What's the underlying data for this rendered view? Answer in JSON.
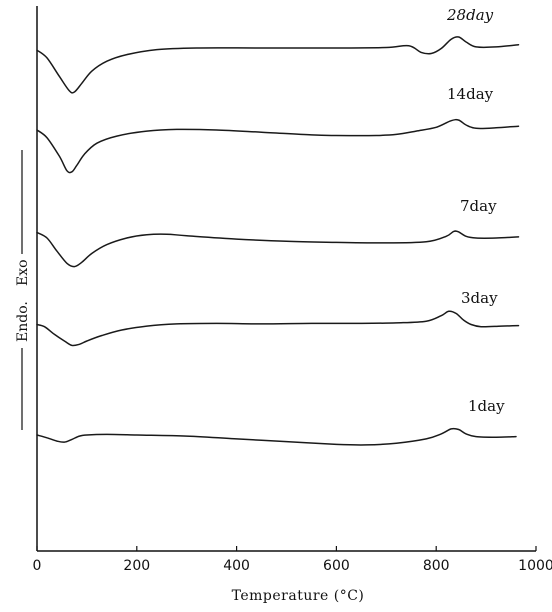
{
  "chart_data": {
    "type": "line",
    "xlabel": "Temperature (°C)",
    "xlim": [
      0,
      1000
    ],
    "xticks": [
      0,
      200,
      400,
      600,
      800,
      1000
    ],
    "ylabel": {
      "endo": "Endo.",
      "exo": "Exo"
    },
    "grid": false,
    "series": [
      {
        "name": "28day",
        "x": [
          0,
          20,
          45,
          65,
          75,
          90,
          110,
          140,
          180,
          240,
          320,
          450,
          600,
          700,
          745,
          770,
          790,
          810,
          830,
          845,
          860,
          880,
          920,
          965
        ],
        "y": [
          -0.2,
          -0.9,
          -2.6,
          -3.9,
          -4.0,
          -3.2,
          -2.1,
          -1.2,
          -0.6,
          -0.15,
          0.0,
          0.0,
          0.0,
          0.05,
          0.2,
          -0.4,
          -0.5,
          -0.05,
          0.8,
          1.0,
          0.55,
          0.1,
          0.1,
          0.3
        ]
      },
      {
        "name": "14day",
        "x": [
          0,
          20,
          45,
          60,
          70,
          80,
          95,
          120,
          160,
          220,
          280,
          360,
          450,
          550,
          600,
          680,
          720,
          760,
          800,
          830,
          845,
          860,
          880,
          920,
          965
        ],
        "y": [
          0.0,
          -0.7,
          -2.4,
          -3.7,
          -3.8,
          -3.2,
          -2.2,
          -1.2,
          -0.55,
          -0.1,
          0.05,
          0.0,
          -0.2,
          -0.45,
          -0.5,
          -0.5,
          -0.4,
          -0.1,
          0.25,
          0.85,
          0.9,
          0.45,
          0.15,
          0.2,
          0.35
        ]
      },
      {
        "name": "7day",
        "x": [
          0,
          20,
          40,
          60,
          75,
          90,
          110,
          140,
          180,
          220,
          260,
          300,
          400,
          500,
          600,
          700,
          780,
          820,
          835,
          845,
          860,
          880,
          920,
          965
        ],
        "y": [
          0.5,
          0.0,
          -1.2,
          -2.3,
          -2.6,
          -2.2,
          -1.4,
          -0.6,
          0.0,
          0.3,
          0.35,
          0.2,
          -0.1,
          -0.3,
          -0.4,
          -0.45,
          -0.35,
          0.15,
          0.6,
          0.55,
          0.15,
          0.0,
          0.0,
          0.1
        ]
      },
      {
        "name": "3day",
        "x": [
          0,
          15,
          35,
          55,
          70,
          85,
          100,
          130,
          170,
          220,
          280,
          360,
          450,
          550,
          650,
          720,
          780,
          810,
          825,
          840,
          855,
          870,
          890,
          930,
          965
        ],
        "y": [
          0.5,
          0.3,
          -0.4,
          -1.0,
          -1.4,
          -1.3,
          -1.0,
          -0.5,
          0.0,
          0.35,
          0.55,
          0.6,
          0.55,
          0.6,
          0.6,
          0.65,
          0.8,
          1.3,
          1.7,
          1.5,
          0.9,
          0.5,
          0.3,
          0.35,
          0.4
        ]
      },
      {
        "name": "1day",
        "x": [
          0,
          20,
          40,
          55,
          70,
          85,
          100,
          140,
          200,
          300,
          400,
          500,
          600,
          660,
          720,
          780,
          810,
          830,
          845,
          860,
          880,
          920,
          960
        ],
        "y": [
          0.0,
          -0.25,
          -0.55,
          -0.65,
          -0.4,
          -0.1,
          0.0,
          0.05,
          0.0,
          -0.1,
          -0.35,
          -0.6,
          -0.85,
          -0.9,
          -0.75,
          -0.35,
          0.1,
          0.55,
          0.5,
          0.1,
          -0.15,
          -0.2,
          -0.15
        ]
      }
    ]
  }
}
